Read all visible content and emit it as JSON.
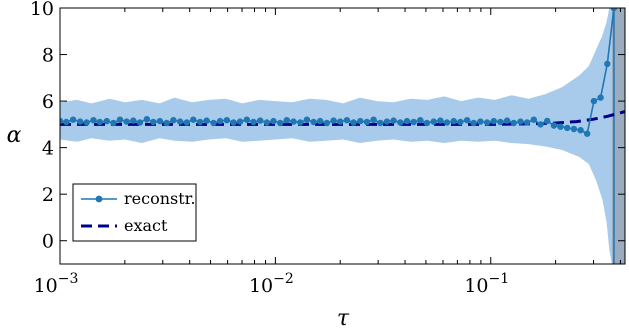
{
  "chart_data": {
    "type": "line",
    "xscale": "log",
    "xlabel": "τ",
    "ylabel": "α",
    "xlim": [
      0.001,
      0.42
    ],
    "ylim": [
      -1,
      10
    ],
    "grid": false,
    "legend_position": "bottom-left",
    "xticks": [
      {
        "value": 0.001,
        "base": "10",
        "exp": "−3"
      },
      {
        "value": 0.01,
        "base": "10",
        "exp": "−2"
      },
      {
        "value": 0.1,
        "base": "10",
        "exp": "−1"
      }
    ],
    "yticks": [
      {
        "value": 0,
        "label": "0"
      },
      {
        "value": 2,
        "label": "2"
      },
      {
        "value": 4,
        "label": "4"
      },
      {
        "value": 6,
        "label": "6"
      },
      {
        "value": 8,
        "label": "8"
      },
      {
        "value": 10,
        "label": "10"
      }
    ],
    "colors": {
      "reconstr": "#1f77b4",
      "exact": "#00008b",
      "band": "#a9cbeb",
      "divergence_band": "#8a9eb3"
    },
    "band_label": "",
    "vertical_band": {
      "from": 0.365,
      "to": 0.42
    },
    "series": [
      {
        "name": "reconstr.",
        "style": "line-dots",
        "x": [
          0.001,
          0.00107,
          0.00115,
          0.00124,
          0.00133,
          0.00143,
          0.00153,
          0.00165,
          0.00177,
          0.0019,
          0.00204,
          0.00219,
          0.00235,
          0.00253,
          0.00271,
          0.00291,
          0.00313,
          0.00336,
          0.00361,
          0.00388,
          0.00416,
          0.00447,
          0.0048,
          0.00516,
          0.00554,
          0.00595,
          0.00639,
          0.00686,
          0.00737,
          0.00791,
          0.0085,
          0.00913,
          0.0098,
          0.01053,
          0.0113,
          0.01214,
          0.01304,
          0.014,
          0.01504,
          0.01615,
          0.01734,
          0.01863,
          0.02,
          0.02148,
          0.02307,
          0.02478,
          0.02661,
          0.02858,
          0.03069,
          0.03296,
          0.0354,
          0.03802,
          0.04083,
          0.04385,
          0.0471,
          0.05058,
          0.05432,
          0.05834,
          0.06266,
          0.06729,
          0.07227,
          0.07761,
          0.08336,
          0.08952,
          0.09615,
          0.10326,
          0.1109,
          0.11911,
          0.12792,
          0.13738,
          0.14755,
          0.15846,
          0.17019,
          0.18278,
          0.1963,
          0.21083,
          0.22643,
          0.24318,
          0.26117,
          0.28049,
          0.30125,
          0.32354,
          0.34748,
          0.37319
        ],
        "values": [
          5.15,
          5.1,
          5.2,
          5.12,
          5.08,
          5.18,
          5.1,
          5.14,
          5.06,
          5.2,
          5.12,
          5.16,
          5.08,
          5.22,
          5.1,
          5.14,
          5.06,
          5.18,
          5.12,
          5.08,
          5.2,
          5.1,
          5.16,
          5.06,
          5.14,
          5.18,
          5.08,
          5.12,
          5.2,
          5.1,
          5.16,
          5.08,
          5.14,
          5.06,
          5.18,
          5.12,
          5.08,
          5.2,
          5.1,
          5.14,
          5.06,
          5.16,
          5.12,
          5.18,
          5.08,
          5.14,
          5.1,
          5.2,
          5.06,
          5.12,
          5.16,
          5.08,
          5.14,
          5.1,
          5.18,
          5.06,
          5.12,
          5.16,
          5.08,
          5.14,
          5.1,
          5.18,
          5.06,
          5.12,
          5.08,
          5.14,
          5.1,
          5.16,
          5.06,
          5.12,
          5.08,
          5.2,
          5.0,
          5.15,
          4.95,
          4.9,
          4.85,
          4.8,
          4.75,
          4.6,
          6.0,
          6.15,
          7.6,
          10.0
        ]
      },
      {
        "name": "exact",
        "style": "dashed",
        "x": [
          0.001,
          0.01,
          0.05,
          0.1,
          0.15,
          0.2,
          0.25,
          0.3,
          0.35,
          0.42
        ],
        "values": [
          5.0,
          5.0,
          5.0,
          5.0,
          5.02,
          5.06,
          5.12,
          5.22,
          5.35,
          5.55
        ]
      }
    ],
    "band": {
      "x": [
        0.001,
        0.0012,
        0.0014,
        0.0017,
        0.002,
        0.0024,
        0.0029,
        0.0034,
        0.0041,
        0.0049,
        0.0059,
        0.007,
        0.0084,
        0.01,
        0.012,
        0.0144,
        0.0172,
        0.0206,
        0.0247,
        0.0296,
        0.0354,
        0.0424,
        0.0508,
        0.0608,
        0.0728,
        0.0872,
        0.1044,
        0.125,
        0.1497,
        0.1793,
        0.2147,
        0.2571,
        0.285,
        0.308,
        0.329,
        0.345,
        0.355,
        0.365
      ],
      "upper": [
        5.95,
        6.05,
        5.9,
        6.1,
        5.95,
        6.05,
        5.9,
        6.15,
        5.95,
        6.05,
        6.1,
        5.9,
        6.05,
        6.0,
        5.95,
        6.1,
        6.05,
        5.9,
        6.15,
        6.0,
        5.95,
        6.1,
        6.05,
        6.2,
        6.0,
        6.15,
        6.05,
        6.25,
        6.1,
        6.3,
        6.6,
        7.1,
        7.5,
        8.2,
        8.8,
        9.4,
        10.0,
        10.0
      ],
      "lower": [
        4.35,
        4.25,
        4.4,
        4.3,
        4.35,
        4.2,
        4.4,
        4.3,
        4.25,
        4.35,
        4.4,
        4.25,
        4.3,
        4.35,
        4.4,
        4.25,
        4.3,
        4.35,
        4.2,
        4.3,
        4.35,
        4.25,
        4.3,
        4.2,
        4.3,
        4.25,
        4.3,
        4.2,
        4.15,
        4.05,
        3.9,
        3.6,
        3.3,
        2.6,
        1.8,
        0.8,
        -0.4,
        -1.0
      ]
    }
  }
}
